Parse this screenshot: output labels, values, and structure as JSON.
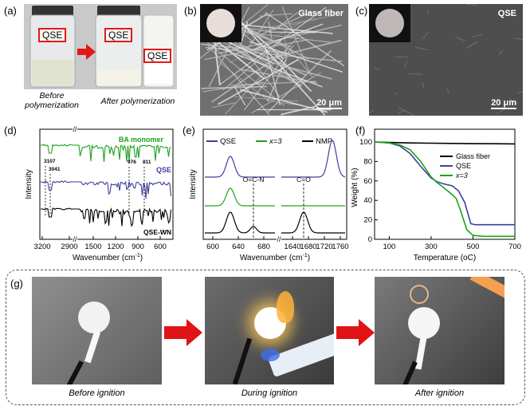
{
  "labels": {
    "a": "(a)",
    "b": "(b)",
    "c": "(c)",
    "d": "(d)",
    "e": "(e)",
    "f": "(f)",
    "g": "(g)"
  },
  "panel_a": {
    "vial_label": "QSE",
    "caption_before_1": "Before",
    "caption_before_2": "polymerization",
    "caption_after": "After polymerization"
  },
  "panel_b": {
    "title": "Glass fiber",
    "scale": "20 μm"
  },
  "panel_c": {
    "title": "QSE",
    "scale": "20 μm"
  },
  "panel_g": {
    "captions": [
      "Before ignition",
      "During ignition",
      "After ignition"
    ]
  },
  "chart_data": [
    {
      "type": "line",
      "panel": "d",
      "xlabel": "Wavenumber (cm",
      "xlabel_sup": "-1",
      "xlabel_end": ")",
      "ylabel": "Intensity",
      "x_ticks": [
        "3200",
        "2900",
        "1500",
        "1200",
        "900",
        "600"
      ],
      "series": [
        {
          "name": "BA monomer",
          "color": "#1aa31a"
        },
        {
          "name": "QSE",
          "color": "#3f3f9a"
        },
        {
          "name": "QSE-WN",
          "color": "#000000"
        }
      ],
      "annotations": [
        "3107",
        "3041",
        "976",
        "811"
      ]
    },
    {
      "type": "line",
      "panel": "e",
      "xlabel": "Wavenumber (cm",
      "xlabel_sup": "-1",
      "xlabel_end": ")",
      "ylabel": "Intensity",
      "x_ticks": [
        "600",
        "640",
        "680",
        "1640",
        "1680",
        "1720",
        "1760"
      ],
      "legend": [
        {
          "name": "QSE",
          "color": "#3f3f9a"
        },
        {
          "name": "x=3",
          "color": "#1aa31a"
        },
        {
          "name": "NMP",
          "color": "#000000"
        }
      ],
      "annotations": [
        "O=C-N",
        "C=O"
      ]
    },
    {
      "type": "line",
      "panel": "f",
      "xlabel": "Temperature (",
      "xlabel_unit": "oC",
      "xlabel_end": ")",
      "ylabel": "Weight (%)",
      "x_ticks": [
        100,
        300,
        500,
        700
      ],
      "y_ticks": [
        0,
        20,
        40,
        60,
        80,
        100
      ],
      "xlim": [
        30,
        700
      ],
      "ylim": [
        0,
        100
      ],
      "series": [
        {
          "name": "Glass fiber",
          "color": "#000000",
          "x": [
            30,
            100,
            200,
            300,
            400,
            500,
            600,
            700
          ],
          "y": [
            100,
            99.5,
            99,
            98.8,
            98.5,
            98.3,
            98.2,
            98
          ]
        },
        {
          "name": "QSE",
          "color": "#3f3f9a",
          "x": [
            30,
            100,
            150,
            200,
            250,
            300,
            330,
            360,
            400,
            430,
            460,
            490,
            510,
            550,
            600,
            700
          ],
          "y": [
            100,
            99,
            96,
            88,
            75,
            63,
            59,
            57,
            55,
            50,
            38,
            16,
            15,
            15,
            15,
            15
          ]
        },
        {
          "name": "x=3",
          "color": "#1aa31a",
          "x": [
            30,
            100,
            150,
            200,
            250,
            300,
            330,
            360,
            400,
            420,
            440,
            470,
            500,
            550,
            600,
            700
          ],
          "y": [
            100,
            99,
            97,
            92,
            80,
            64,
            58,
            53,
            46,
            42,
            30,
            10,
            4,
            3,
            3,
            3
          ]
        }
      ]
    }
  ]
}
